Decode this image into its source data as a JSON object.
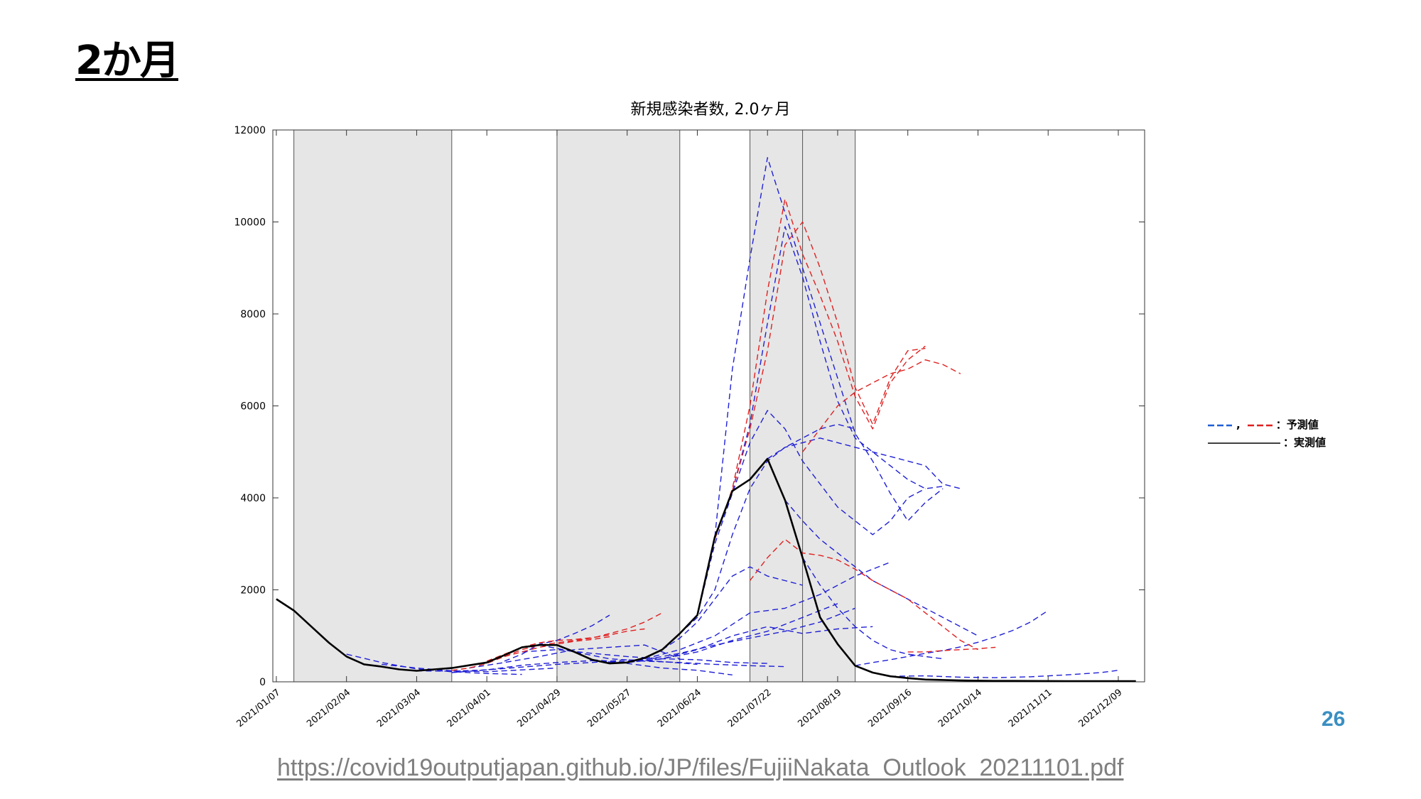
{
  "slide": {
    "title": "2か月",
    "page_number": "26",
    "source_url": "https://covid19outputjapan.github.io/JP/files/FujiiNakata_Outlook_20211101.pdf"
  },
  "legend": {
    "forecast_label": "：予測値",
    "forecast_separator": ",",
    "actual_label": "：実測値"
  },
  "colors": {
    "forecast_blue": "#1f1fd6",
    "forecast_red": "#e02020",
    "actual": "#000000",
    "shade": "#e6e6e6"
  },
  "chart_data": {
    "type": "line",
    "title": "新規感染者数, 2.0ヶ月",
    "xlabel": "",
    "ylabel": "",
    "ylim": [
      0,
      12000
    ],
    "yticks": [
      0,
      2000,
      4000,
      6000,
      8000,
      10000,
      12000
    ],
    "xticks": [
      "2021/01/07",
      "2021/02/04",
      "2021/03/04",
      "2021/04/01",
      "2021/04/29",
      "2021/05/27",
      "2021/06/24",
      "2021/07/22",
      "2021/08/19",
      "2021/09/16",
      "2021/10/14",
      "2021/11/11",
      "2021/12/09"
    ],
    "x_unit": "weeks since 2021/01/07",
    "xlim": [
      -0.2,
      49.5
    ],
    "shaded_periods": [
      [
        1,
        10
      ],
      [
        16,
        23
      ],
      [
        27,
        30
      ],
      [
        30,
        33
      ]
    ],
    "series": [
      {
        "name": "実測値",
        "style": "actual",
        "x": [
          0,
          1,
          2,
          3,
          4,
          5,
          6,
          7,
          8,
          9,
          10,
          11,
          12,
          13,
          14,
          15,
          16,
          17,
          18,
          19,
          20,
          21,
          22,
          23,
          24,
          25,
          26,
          27,
          28,
          29,
          30,
          31,
          32,
          33,
          34,
          35,
          36,
          37,
          38,
          39,
          40,
          41,
          42,
          43,
          44,
          45,
          46,
          47,
          48,
          49
        ],
        "y": [
          1800,
          1550,
          1200,
          850,
          550,
          380,
          330,
          270,
          240,
          270,
          300,
          360,
          420,
          580,
          750,
          800,
          800,
          650,
          480,
          400,
          420,
          520,
          700,
          1050,
          1450,
          3150,
          4150,
          4400,
          4850,
          3950,
          2700,
          1400,
          820,
          350,
          200,
          120,
          80,
          50,
          40,
          30,
          25,
          20,
          20,
          18,
          17,
          16,
          15,
          15,
          15,
          15
        ]
      },
      {
        "style": "forecast_blue",
        "x": [
          4,
          6,
          8,
          10,
          12,
          14
        ],
        "y": [
          600,
          420,
          280,
          220,
          180,
          160
        ]
      },
      {
        "style": "forecast_blue",
        "x": [
          6,
          8,
          10,
          12,
          14,
          16
        ],
        "y": [
          380,
          300,
          240,
          220,
          260,
          300
        ]
      },
      {
        "style": "forecast_blue",
        "x": [
          8,
          10,
          12,
          14,
          16,
          18,
          20,
          22,
          24
        ],
        "y": [
          240,
          230,
          260,
          320,
          380,
          420,
          480,
          440,
          380
        ]
      },
      {
        "style": "forecast_blue",
        "x": [
          10,
          12,
          14,
          16,
          18,
          20,
          22,
          24,
          26
        ],
        "y": [
          200,
          260,
          360,
          420,
          460,
          400,
          300,
          250,
          150
        ]
      },
      {
        "style": "forecast_blue",
        "x": [
          11,
          13,
          15,
          17,
          19,
          21,
          23
        ],
        "y": [
          300,
          420,
          550,
          700,
          750,
          800,
          500
        ]
      },
      {
        "style": "forecast_blue",
        "x": [
          13,
          14,
          15,
          16,
          17,
          18,
          19
        ],
        "y": [
          450,
          600,
          820,
          900,
          1050,
          1220,
          1450
        ]
      },
      {
        "style": "forecast_blue",
        "x": [
          14,
          16,
          18,
          20,
          22,
          24,
          26,
          28
        ],
        "y": [
          650,
          700,
          620,
          550,
          500,
          480,
          420,
          400
        ]
      },
      {
        "style": "forecast_blue",
        "x": [
          15,
          17,
          19,
          21,
          23,
          25,
          27,
          29
        ],
        "y": [
          800,
          650,
          500,
          450,
          420,
          380,
          350,
          330
        ]
      },
      {
        "style": "forecast_blue",
        "x": [
          18,
          20,
          22,
          24,
          26,
          28,
          30,
          32
        ],
        "y": [
          480,
          420,
          500,
          650,
          900,
          1100,
          1400,
          1700
        ]
      },
      {
        "style": "forecast_blue",
        "x": [
          19,
          21,
          23,
          25,
          27,
          29,
          31,
          33
        ],
        "y": [
          420,
          480,
          620,
          800,
          950,
          1100,
          1300,
          1600
        ]
      },
      {
        "style": "forecast_blue",
        "x": [
          20,
          22,
          24,
          26,
          28,
          30,
          32,
          34
        ],
        "y": [
          420,
          500,
          700,
          1000,
          1200,
          1050,
          1150,
          1200
        ]
      },
      {
        "style": "forecast_blue",
        "x": [
          21,
          23,
          25,
          27,
          29,
          31,
          33,
          35
        ],
        "y": [
          500,
          700,
          1000,
          1500,
          1600,
          1900,
          2300,
          2600
        ]
      },
      {
        "style": "forecast_blue",
        "x": [
          22,
          23,
          24,
          25,
          26,
          27,
          28,
          29,
          30
        ],
        "y": [
          700,
          950,
          1300,
          1800,
          2300,
          2500,
          2300,
          2200,
          2100
        ]
      },
      {
        "style": "forecast_blue",
        "x": [
          23,
          24,
          25,
          26,
          27,
          28,
          29,
          30,
          31,
          32,
          33
        ],
        "y": [
          1050,
          1400,
          2000,
          3200,
          4200,
          4800,
          5100,
          5300,
          5500,
          5600,
          5500
        ]
      },
      {
        "style": "forecast_blue",
        "x": [
          24,
          25,
          26,
          27,
          28,
          29,
          30,
          31,
          32,
          33,
          34,
          35,
          36,
          37
        ],
        "y": [
          1450,
          3000,
          4100,
          5200,
          5900,
          5500,
          4800,
          4300,
          3800,
          3500,
          3200,
          3500,
          4000,
          4200
        ]
      },
      {
        "style": "forecast_blue",
        "x": [
          25,
          26,
          27,
          28,
          29,
          30,
          31,
          32,
          33,
          34,
          35,
          36,
          37,
          38
        ],
        "y": [
          3150,
          6800,
          9200,
          11400,
          10200,
          9000,
          7800,
          6600,
          5400,
          4800,
          4100,
          3500,
          3900,
          4200
        ]
      },
      {
        "style": "forecast_blue",
        "x": [
          26,
          27,
          28,
          29,
          30,
          31,
          32,
          33,
          34,
          35,
          36,
          37,
          38
        ],
        "y": [
          4150,
          5600,
          7800,
          9900,
          8800,
          7400,
          6100,
          5300,
          5000,
          4700,
          4400,
          4200,
          4250
        ]
      },
      {
        "style": "forecast_blue",
        "x": [
          28,
          29,
          30,
          31,
          32,
          33,
          34,
          35,
          36,
          37,
          38,
          39
        ],
        "y": [
          4850,
          5100,
          5200,
          5300,
          5200,
          5100,
          5000,
          4900,
          4800,
          4700,
          4300,
          4200
        ]
      },
      {
        "style": "forecast_blue",
        "x": [
          29,
          30,
          31,
          32,
          33,
          34,
          35,
          36,
          37,
          38,
          39,
          40
        ],
        "y": [
          3950,
          3500,
          3100,
          2800,
          2500,
          2200,
          2000,
          1800,
          1600,
          1400,
          1200,
          1000
        ]
      },
      {
        "style": "forecast_blue",
        "x": [
          30,
          31,
          32,
          33,
          34,
          35,
          36,
          37,
          38
        ],
        "y": [
          2700,
          2100,
          1600,
          1200,
          900,
          700,
          600,
          550,
          500
        ]
      },
      {
        "style": "forecast_blue",
        "x": [
          33,
          34,
          35,
          36,
          37,
          38,
          39,
          40,
          41,
          42,
          43,
          44
        ],
        "y": [
          350,
          420,
          480,
          550,
          620,
          680,
          760,
          860,
          980,
          1120,
          1300,
          1550
        ]
      },
      {
        "style": "forecast_blue",
        "x": [
          35,
          37,
          39,
          41,
          43,
          45,
          47,
          48
        ],
        "y": [
          120,
          130,
          100,
          90,
          110,
          150,
          200,
          250
        ]
      },
      {
        "style": "forecast_red",
        "x": [
          10,
          11,
          12,
          13,
          14,
          15,
          16,
          17,
          18,
          19,
          20,
          21,
          22
        ],
        "y": [
          250,
          300,
          400,
          550,
          700,
          800,
          850,
          900,
          950,
          1050,
          1150,
          1300,
          1500
        ]
      },
      {
        "style": "forecast_red",
        "x": [
          12,
          13,
          14,
          15,
          16,
          17,
          18,
          19,
          20,
          21
        ],
        "y": [
          450,
          600,
          750,
          850,
          900,
          920,
          960,
          1020,
          1100,
          1150
        ]
      },
      {
        "style": "forecast_red",
        "x": [
          13,
          14,
          15,
          16,
          17,
          18,
          19
        ],
        "y": [
          550,
          650,
          750,
          820,
          880,
          920,
          980
        ]
      },
      {
        "style": "forecast_red",
        "x": [
          25,
          26,
          27,
          28,
          29,
          30,
          31,
          32,
          33,
          34,
          35,
          36,
          37
        ],
        "y": [
          3100,
          4200,
          6000,
          8500,
          10500,
          9300,
          8400,
          7400,
          6200,
          5500,
          6500,
          7000,
          7300
        ]
      },
      {
        "style": "forecast_red",
        "x": [
          26,
          27,
          28,
          29,
          30,
          31,
          32,
          33,
          34,
          35,
          36,
          37
        ],
        "y": [
          4150,
          5500,
          7200,
          9500,
          10000,
          9000,
          7800,
          6400,
          5600,
          6600,
          7200,
          7250
        ]
      },
      {
        "style": "forecast_red",
        "x": [
          27,
          28,
          29,
          30,
          31,
          32,
          33,
          34,
          35,
          36,
          37,
          38,
          39,
          40
        ],
        "y": [
          2200,
          2700,
          3100,
          2800,
          2750,
          2650,
          2450,
          2200,
          2000,
          1800,
          1500,
          1200,
          900,
          700
        ]
      },
      {
        "style": "forecast_red",
        "x": [
          30,
          31,
          32,
          33,
          34,
          35,
          36,
          37,
          38,
          39
        ],
        "y": [
          5000,
          5500,
          6000,
          6300,
          6500,
          6700,
          6800,
          7000,
          6900,
          6700
        ]
      },
      {
        "style": "forecast_red",
        "x": [
          36,
          37,
          38,
          39,
          40,
          41
        ],
        "y": [
          650,
          650,
          680,
          700,
          720,
          750
        ]
      }
    ]
  }
}
